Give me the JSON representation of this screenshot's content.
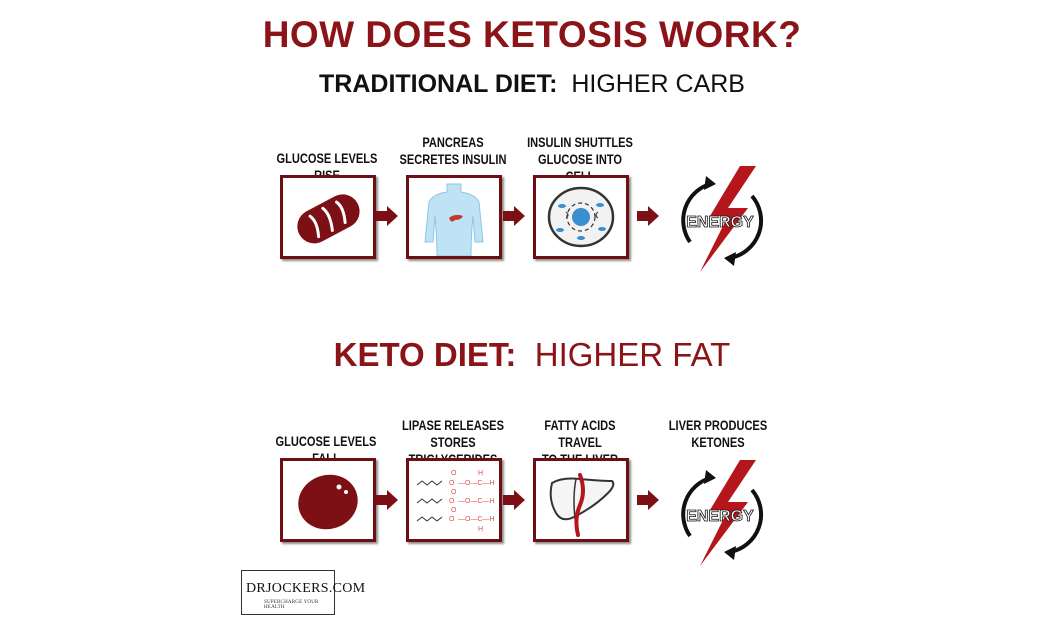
{
  "title": "HOW DOES KETOSIS WORK?",
  "traditional": {
    "label_bold": "TRADITIONAL DIET:",
    "label_normal": "HIGHER CARB",
    "steps": [
      {
        "line1": "GLUCOSE LEVELS RISE",
        "line2": "",
        "icon": "bread-icon"
      },
      {
        "line1": "PANCREAS",
        "line2": "SECRETES INSULIN",
        "icon": "pancreas-torso-icon"
      },
      {
        "line1": "INSULIN SHUTTLES",
        "line2": "GLUCOSE INTO CELL",
        "icon": "cell-icon"
      },
      {
        "line1": "",
        "line2": "",
        "icon": "energy-cycle-icon",
        "energy_label": "ENERGY"
      }
    ]
  },
  "keto": {
    "label_bold": "KETO DIET:",
    "label_normal": "HIGHER FAT",
    "steps": [
      {
        "line1": "GLUCOSE LEVELS FALL",
        "line2": "",
        "icon": "fat-droplet-icon"
      },
      {
        "line1": "LIPASE RELEASES",
        "line2": "STORES TRIGLYCERIDES",
        "icon": "triglyceride-molecule-icon"
      },
      {
        "line1": "FATTY ACIDS TRAVEL",
        "line2": "TO THE LIVER",
        "icon": "liver-icon"
      },
      {
        "line1": "LIVER PRODUCES",
        "line2": "KETONES",
        "icon": "energy-cycle-icon",
        "energy_label": "ENERGY"
      }
    ]
  },
  "logo": {
    "name": "DRJOCKERS.COM",
    "tagline": "SUPERCHARGE YOUR HEALTH"
  },
  "colors": {
    "brand": "#8b1418",
    "dark_red": "#6e0f13",
    "text": "#111111"
  }
}
